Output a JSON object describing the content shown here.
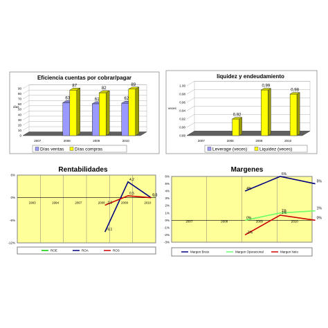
{
  "chart_data": [
    {
      "type": "bar",
      "title": "Eficiencia cuentas por cobrar/pagar",
      "ylabel": "días",
      "categories": [
        "2007",
        "2008",
        "2009",
        "2010"
      ],
      "ylim": [
        0,
        90
      ],
      "yticks": [
        "0",
        "10",
        "20",
        "30",
        "40",
        "50",
        "60",
        "70",
        "80",
        "90"
      ],
      "series": [
        {
          "name": "Días ventas",
          "values": [
            null,
            63,
            61,
            62
          ],
          "labels": [
            "",
            "63",
            "61",
            "62"
          ],
          "color": "#9999ff"
        },
        {
          "name": "Días compras",
          "values": [
            null,
            87,
            82,
            89
          ],
          "labels": [
            "",
            "87",
            "82",
            "89"
          ],
          "color": "#ffff00"
        }
      ],
      "style": "3d",
      "grid": true,
      "legend": "bottom"
    },
    {
      "type": "bar",
      "title": "liquidez y endeudamiento",
      "ylabel": "veces",
      "categories": [
        "2007",
        "2008",
        "2009",
        "2010"
      ],
      "ylim": [
        0.88,
        1.0
      ],
      "yticks": [
        "0.88",
        "0.90",
        "0.92",
        "0.94",
        "0.96",
        "0.98",
        "1.00"
      ],
      "series": [
        {
          "name": "Leverage (veces)",
          "values": [
            null,
            null,
            null,
            null
          ],
          "color": "#9999ff"
        },
        {
          "name": "Liquidez (veces)",
          "values": [
            null,
            0.92,
            0.99,
            0.98
          ],
          "labels": [
            "",
            "0,92",
            "0,99",
            "0,98"
          ],
          "color": "#ffff00"
        }
      ],
      "style": "3d",
      "grid": true,
      "legend": "bottom"
    },
    {
      "type": "line",
      "title": "Rentabilidades",
      "categories": [
        "1993",
        "1994",
        "2007",
        "2008",
        "2009",
        "2010"
      ],
      "ylim": [
        -12,
        6
      ],
      "yticks": [
        "6%",
        "0%",
        "-6%",
        "-12%"
      ],
      "series": [
        {
          "name": "ROE",
          "values": [
            null,
            null,
            null,
            null,
            null,
            null
          ],
          "color": "#00cc00"
        },
        {
          "name": "ROA",
          "values": [
            null,
            null,
            null,
            -9.1,
            4.2,
            0.0
          ],
          "labels": [
            "",
            "",
            "",
            "-9,1",
            "4,2",
            "0,0"
          ],
          "color": "#000080"
        },
        {
          "name": "ROS",
          "values": [
            null,
            null,
            null,
            -2.0,
            0.5,
            0.0
          ],
          "labels": [
            "",
            "",
            "",
            "-2,0",
            "0,5",
            "0,0"
          ],
          "color": "#cc0000"
        }
      ],
      "grid": true,
      "legend": "bottom"
    },
    {
      "type": "line",
      "title": "Margenes",
      "categories": [
        "2007",
        "2008",
        "2009",
        "2010"
      ],
      "ylim": [
        -3,
        6
      ],
      "yticks": [
        "6%",
        "5%",
        "4%",
        "3%",
        "2%",
        "1%",
        "0%",
        "-1%",
        "-2%",
        "-3%"
      ],
      "series": [
        {
          "name": "Margen Bruto",
          "values": [
            null,
            4,
            6,
            5
          ],
          "labels": [
            "",
            "4%",
            "6%",
            "5%"
          ],
          "color": "#000080"
        },
        {
          "name": "Margen Operacional",
          "values": [
            null,
            0,
            1,
            1.3
          ],
          "labels": [
            "",
            "0%",
            "1%",
            "1%"
          ],
          "color": "#66ff66"
        },
        {
          "name": "Margen Neto",
          "values": [
            null,
            -2,
            0.7,
            0
          ],
          "labels": [
            "",
            "-2%",
            "1%",
            "0%"
          ],
          "color": "#cc0000"
        }
      ],
      "grid": true,
      "legend": "bottom"
    }
  ]
}
